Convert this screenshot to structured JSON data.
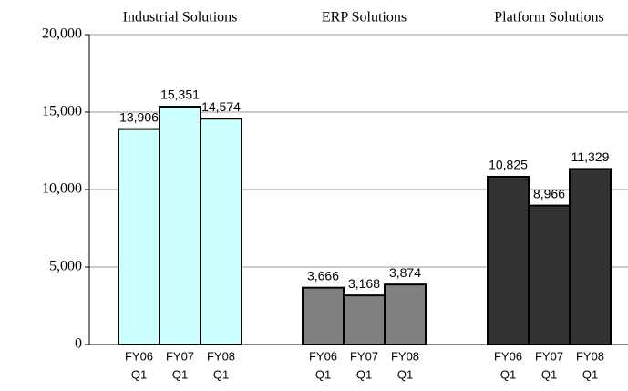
{
  "chart_data": {
    "type": "bar",
    "groups": [
      {
        "name": "Industrial Solutions",
        "color": "#ccffff",
        "categories": [
          [
            "FY06",
            "Q1"
          ],
          [
            "FY07",
            "Q1"
          ],
          [
            "FY08",
            "Q1"
          ]
        ],
        "values": [
          13906,
          15351,
          14574
        ],
        "value_labels": [
          "13,906",
          "15,351",
          "14,574"
        ]
      },
      {
        "name": "ERP Solutions",
        "color": "#808080",
        "categories": [
          [
            "FY06",
            "Q1"
          ],
          [
            "FY07",
            "Q1"
          ],
          [
            "FY08",
            "Q1"
          ]
        ],
        "values": [
          3666,
          3168,
          3874
        ],
        "value_labels": [
          "3,666",
          "3,168",
          "3,874"
        ]
      },
      {
        "name": "Platform Solutions",
        "color": "#333333",
        "categories": [
          [
            "FY06",
            "Q1"
          ],
          [
            "FY07",
            "Q1"
          ],
          [
            "FY08",
            "Q1"
          ]
        ],
        "values": [
          10825,
          8966,
          11329
        ],
        "value_labels": [
          "10,825",
          "8,966",
          "11,329"
        ]
      }
    ],
    "ylim": [
      0,
      20000
    ],
    "yticks": [
      0,
      {
        "value": 5000,
        "label": "5,000"
      },
      {
        "value": 10000,
        "label": "10,000"
      },
      {
        "value": 15000,
        "label": "15,000"
      },
      {
        "value": 20000,
        "label": "20,000"
      }
    ],
    "grid": true
  }
}
